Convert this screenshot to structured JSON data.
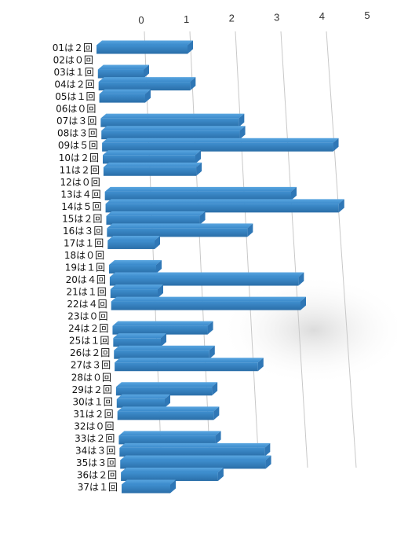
{
  "chart_data": {
    "type": "bar",
    "orientation": "horizontal",
    "style": "3d",
    "grid": true,
    "xlim": [
      0,
      5
    ],
    "x_ticks": [
      "0",
      "1",
      "2",
      "3",
      "4",
      "5"
    ],
    "bar_color": "#3d8fce",
    "categories": [
      "01は２回",
      "02は０回",
      "03は１回",
      "04は２回",
      "05は１回",
      "06は０回",
      "07は３回",
      "08は３回",
      "09は５回",
      "10は２回",
      "11は２回",
      "12は０回",
      "13は４回",
      "14は５回",
      "15は２回",
      "16は３回",
      "17は１回",
      "18は０回",
      "19は１回",
      "20は４回",
      "21は１回",
      "22は４回",
      "23は０回",
      "24は２回",
      "25は１回",
      "26は２回",
      "27は３回",
      "28は０回",
      "29は２回",
      "30は１回",
      "31は２回",
      "32は０回",
      "33は２回",
      "34は３回",
      "35は３回",
      "36は２回",
      "37は１回"
    ],
    "values": [
      2,
      0,
      1,
      2,
      1,
      0,
      3,
      3,
      5,
      2,
      2,
      0,
      4,
      5,
      2,
      3,
      1,
      0,
      1,
      4,
      1,
      4,
      0,
      2,
      1,
      2,
      3,
      0,
      2,
      1,
      2,
      0,
      2,
      3,
      3,
      2,
      1
    ]
  }
}
